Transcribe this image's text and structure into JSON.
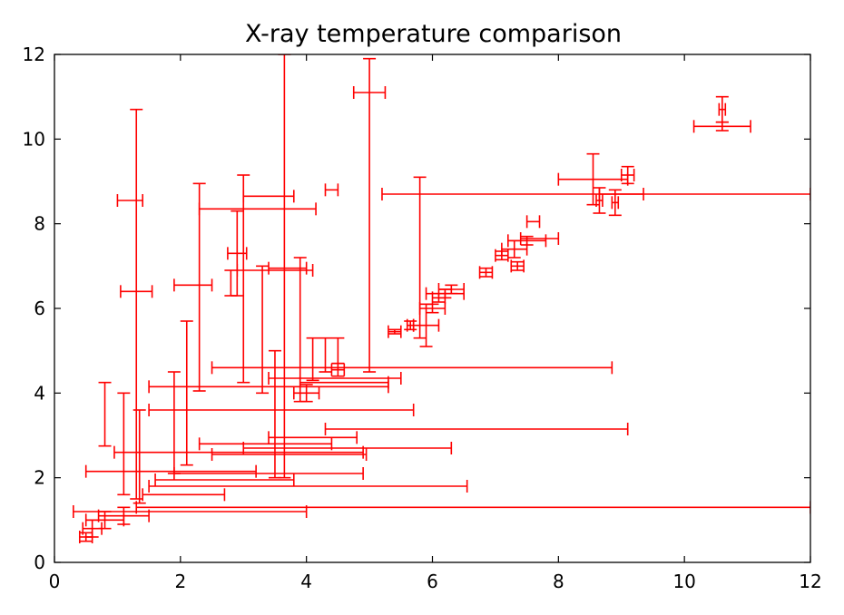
{
  "chart_data": {
    "type": "scatter",
    "title": "X-ray temperature comparison",
    "xlabel": "",
    "ylabel": "",
    "xlim": [
      0,
      12
    ],
    "ylim": [
      0,
      12
    ],
    "xticks": [
      0,
      2,
      4,
      6,
      8,
      10,
      12
    ],
    "yticks": [
      0,
      2,
      4,
      6,
      8,
      10,
      12
    ],
    "grid": false,
    "colors": {
      "errorbar": "#ff0000",
      "axes": "#000000"
    },
    "series": [
      {
        "values": [
          {
            "x": 0.5,
            "y": 0.6,
            "xerr": [
              0.1,
              0.1
            ],
            "yerr": [
              0.1,
              0.1
            ]
          },
          {
            "x": 0.6,
            "y": 0.8,
            "xerr": [
              0.15,
              0.15
            ],
            "yerr": [
              0.2,
              0.2
            ]
          },
          {
            "x": 0.8,
            "y": 1.0,
            "xerr": [
              0.3,
              0.3
            ],
            "yerr": [
              0.2,
              0.2
            ]
          },
          {
            "x": 1.1,
            "y": 1.1,
            "xerr": [
              0.4,
              0.4
            ],
            "yerr": [
              0.2,
              0.2
            ]
          },
          {
            "x": 0.3,
            "y": 1.2,
            "xerr": [
              0.0,
              3.7
            ],
            "yerr": [
              0.0,
              0.0
            ]
          },
          {
            "x": 1.3,
            "y": 1.3,
            "xerr": [
              0.0,
              10.7
            ],
            "yerr": [
              0.0,
              0.0
            ]
          },
          {
            "x": 0.8,
            "y": 3.5,
            "xerr": [
              0.0,
              0.0
            ],
            "yerr": [
              0.75,
              0.75
            ]
          },
          {
            "x": 1.1,
            "y": 2.8,
            "xerr": [
              0.0,
              0.0
            ],
            "yerr": [
              1.2,
              1.2
            ]
          },
          {
            "x": 1.2,
            "y": 8.55,
            "xerr": [
              0.2,
              0.2
            ],
            "yerr": [
              0.0,
              0.0
            ]
          },
          {
            "x": 1.3,
            "y": 6.4,
            "xerr": [
              0.25,
              0.25
            ],
            "yerr": [
              4.9,
              4.3
            ]
          },
          {
            "x": 1.35,
            "y": 2.5,
            "xerr": [
              0.0,
              0.0
            ],
            "yerr": [
              1.1,
              1.1
            ]
          },
          {
            "x": 0.5,
            "y": 2.15,
            "xerr": [
              0.0,
              2.7
            ],
            "yerr": [
              0.0,
              0.0
            ]
          },
          {
            "x": 0.95,
            "y": 2.6,
            "xerr": [
              0.0,
              3.95
            ],
            "yerr": [
              0.0,
              0.0
            ]
          },
          {
            "x": 1.5,
            "y": 1.8,
            "xerr": [
              0.0,
              5.05
            ],
            "yerr": [
              0.0,
              0.0
            ]
          },
          {
            "x": 1.4,
            "y": 1.6,
            "xerr": [
              0.0,
              1.3
            ],
            "yerr": [
              0.0,
              0.0
            ]
          },
          {
            "x": 1.6,
            "y": 1.95,
            "xerr": [
              0.0,
              2.2
            ],
            "yerr": [
              0.0,
              0.0
            ]
          },
          {
            "x": 1.9,
            "y": 2.1,
            "xerr": [
              0.0,
              3.0
            ],
            "yerr": [
              0.0,
              0.0
            ]
          },
          {
            "x": 2.3,
            "y": 2.8,
            "xerr": [
              0.0,
              2.1
            ],
            "yerr": [
              0.0,
              0.0
            ]
          },
          {
            "x": 2.5,
            "y": 2.55,
            "xerr": [
              0.0,
              2.45
            ],
            "yerr": [
              0.0,
              0.0
            ]
          },
          {
            "x": 3.0,
            "y": 2.7,
            "xerr": [
              0.0,
              3.3
            ],
            "yerr": [
              0.0,
              0.0
            ]
          },
          {
            "x": 4.3,
            "y": 3.15,
            "xerr": [
              0.0,
              4.8
            ],
            "yerr": [
              0.0,
              0.0
            ]
          },
          {
            "x": 3.4,
            "y": 2.95,
            "xerr": [
              0.0,
              1.4
            ],
            "yerr": [
              0.0,
              0.0
            ]
          },
          {
            "x": 1.5,
            "y": 3.6,
            "xerr": [
              0.0,
              4.2
            ],
            "yerr": [
              0.0,
              0.0
            ]
          },
          {
            "x": 1.5,
            "y": 4.15,
            "xerr": [
              0.0,
              3.8
            ],
            "yerr": [
              0.0,
              0.0
            ]
          },
          {
            "x": 2.5,
            "y": 4.6,
            "xerr": [
              0.0,
              6.35
            ],
            "yerr": [
              0.0,
              0.0
            ]
          },
          {
            "x": 3.4,
            "y": 4.35,
            "xerr": [
              0.0,
              2.1
            ],
            "yerr": [
              0.0,
              0.0
            ]
          },
          {
            "x": 5.2,
            "y": 8.7,
            "xerr": [
              0.0,
              6.8
            ],
            "yerr": [
              0.0,
              0.0
            ]
          },
          {
            "x": 1.9,
            "y": 3.3,
            "xerr": [
              0.0,
              0.0
            ],
            "yerr": [
              1.2,
              1.2
            ]
          },
          {
            "x": 2.1,
            "y": 4.0,
            "xerr": [
              0.0,
              0.0
            ],
            "yerr": [
              1.7,
              1.7
            ]
          },
          {
            "x": 2.2,
            "y": 6.55,
            "xerr": [
              0.3,
              0.3
            ],
            "yerr": [
              0.0,
              0.0
            ]
          },
          {
            "x": 2.3,
            "y": 6.5,
            "xerr": [
              0.0,
              0.0
            ],
            "yerr": [
              2.45,
              2.45
            ]
          },
          {
            "x": 2.3,
            "y": 8.35,
            "xerr": [
              0.0,
              1.85
            ],
            "yerr": [
              0.0,
              0.0
            ]
          },
          {
            "x": 2.8,
            "y": 6.6,
            "xerr": [
              0.0,
              0.0
            ],
            "yerr": [
              0.3,
              0.3
            ]
          },
          {
            "x": 2.9,
            "y": 7.3,
            "xerr": [
              0.15,
              0.15
            ],
            "yerr": [
              1.0,
              1.0
            ]
          },
          {
            "x": 3.0,
            "y": 6.7,
            "xerr": [
              0.0,
              0.0
            ],
            "yerr": [
              2.45,
              2.45
            ]
          },
          {
            "x": 3.3,
            "y": 5.5,
            "xerr": [
              0.0,
              0.0
            ],
            "yerr": [
              1.5,
              1.5
            ]
          },
          {
            "x": 3.4,
            "y": 8.65,
            "xerr": [
              0.4,
              0.4
            ],
            "yerr": [
              0.0,
              0.0
            ]
          },
          {
            "x": 3.5,
            "y": 6.9,
            "xerr": [
              0.6,
              0.6
            ],
            "yerr": [
              0.0,
              0.0
            ]
          },
          {
            "x": 3.65,
            "y": 7.0,
            "xerr": [
              0.0,
              0.0
            ],
            "yerr": [
              5.0,
              5.0
            ]
          },
          {
            "x": 3.5,
            "y": 3.5,
            "xerr": [
              0.0,
              0.0
            ],
            "yerr": [
              1.5,
              1.5
            ]
          },
          {
            "x": 3.9,
            "y": 5.5,
            "xerr": [
              0.0,
              0.0
            ],
            "yerr": [
              1.7,
              1.7
            ]
          },
          {
            "x": 3.7,
            "y": 6.95,
            "xerr": [
              0.3,
              0.3
            ],
            "yerr": [
              0.0,
              0.0
            ]
          },
          {
            "x": 4.4,
            "y": 8.8,
            "xerr": [
              0.1,
              0.1
            ],
            "yerr": [
              0.0,
              0.0
            ]
          },
          {
            "x": 5.0,
            "y": 11.1,
            "xerr": [
              0.25,
              0.25
            ],
            "yerr": [
              6.6,
              0.8
            ]
          },
          {
            "x": 5.8,
            "y": 7.2,
            "xerr": [
              0.0,
              0.0
            ],
            "yerr": [
              1.9,
              1.9
            ]
          },
          {
            "x": 4.1,
            "y": 4.8,
            "xerr": [
              0.0,
              0.0
            ],
            "yerr": [
              0.5,
              0.5
            ]
          },
          {
            "x": 4.3,
            "y": 4.9,
            "xerr": [
              0.0,
              0.0
            ],
            "yerr": [
              0.4,
              0.4
            ]
          },
          {
            "x": 4.5,
            "y": 4.55,
            "xerr": [
              0.1,
              0.1
            ],
            "yerr": [
              0.15,
              0.15
            ]
          },
          {
            "x": 4.5,
            "y": 5.0,
            "xerr": [
              0.0,
              0.0
            ],
            "yerr": [
              0.3,
              0.3
            ]
          },
          {
            "x": 4.0,
            "y": 4.0,
            "xerr": [
              0.2,
              0.2
            ],
            "yerr": [
              0.2,
              0.2
            ]
          },
          {
            "x": 4.6,
            "y": 4.25,
            "xerr": [
              0.7,
              0.7
            ],
            "yerr": [
              0.0,
              0.0
            ]
          },
          {
            "x": 5.4,
            "y": 5.45,
            "xerr": [
              0.1,
              0.1
            ],
            "yerr": [
              0.05,
              0.05
            ]
          },
          {
            "x": 5.65,
            "y": 5.6,
            "xerr": [
              0.05,
              0.05
            ],
            "yerr": [
              0.1,
              0.1
            ]
          },
          {
            "x": 5.9,
            "y": 5.6,
            "xerr": [
              0.2,
              0.2
            ],
            "yerr": [
              0.5,
              0.5
            ]
          },
          {
            "x": 6.0,
            "y": 6.0,
            "xerr": [
              0.2,
              0.2
            ],
            "yerr": [
              0.1,
              0.1
            ]
          },
          {
            "x": 6.1,
            "y": 6.25,
            "xerr": [
              0.1,
              0.1
            ],
            "yerr": [
              0.1,
              0.1
            ]
          },
          {
            "x": 6.2,
            "y": 6.35,
            "xerr": [
              0.3,
              0.3
            ],
            "yerr": [
              0.1,
              0.1
            ]
          },
          {
            "x": 6.3,
            "y": 6.45,
            "xerr": [
              0.2,
              0.2
            ],
            "yerr": [
              0.1,
              0.1
            ]
          },
          {
            "x": 6.85,
            "y": 6.85,
            "xerr": [
              0.1,
              0.1
            ],
            "yerr": [
              0.1,
              0.1
            ]
          },
          {
            "x": 7.1,
            "y": 7.25,
            "xerr": [
              0.1,
              0.1
            ],
            "yerr": [
              0.1,
              0.1
            ]
          },
          {
            "x": 7.3,
            "y": 7.4,
            "xerr": [
              0.2,
              0.2
            ],
            "yerr": [
              0.2,
              0.2
            ]
          },
          {
            "x": 7.35,
            "y": 7.0,
            "xerr": [
              0.1,
              0.1
            ],
            "yerr": [
              0.1,
              0.1
            ]
          },
          {
            "x": 7.5,
            "y": 7.6,
            "xerr": [
              0.3,
              0.3
            ],
            "yerr": [
              0.1,
              0.1
            ]
          },
          {
            "x": 7.6,
            "y": 8.05,
            "xerr": [
              0.1,
              0.1
            ],
            "yerr": [
              0.0,
              0.0
            ]
          },
          {
            "x": 7.7,
            "y": 7.65,
            "xerr": [
              0.3,
              0.3
            ],
            "yerr": [
              0.0,
              0.0
            ]
          },
          {
            "x": 8.55,
            "y": 9.05,
            "xerr": [
              0.55,
              0.55
            ],
            "yerr": [
              0.6,
              0.6
            ]
          },
          {
            "x": 8.65,
            "y": 8.55,
            "xerr": [
              0.05,
              0.05
            ],
            "yerr": [
              0.3,
              0.3
            ]
          },
          {
            "x": 8.9,
            "y": 8.5,
            "xerr": [
              0.05,
              0.05
            ],
            "yerr": [
              0.3,
              0.3
            ]
          },
          {
            "x": 9.1,
            "y": 9.15,
            "xerr": [
              0.1,
              0.1
            ],
            "yerr": [
              0.2,
              0.2
            ]
          },
          {
            "x": 9.0,
            "y": 8.7,
            "xerr": [
              0.35,
              0.35
            ],
            "yerr": [
              0.0,
              0.0
            ]
          },
          {
            "x": 10.6,
            "y": 10.3,
            "xerr": [
              0.45,
              0.45
            ],
            "yerr": [
              0.1,
              0.1
            ]
          },
          {
            "x": 10.6,
            "y": 10.7,
            "xerr": [
              0.05,
              0.05
            ],
            "yerr": [
              0.3,
              0.3
            ]
          }
        ]
      }
    ]
  }
}
